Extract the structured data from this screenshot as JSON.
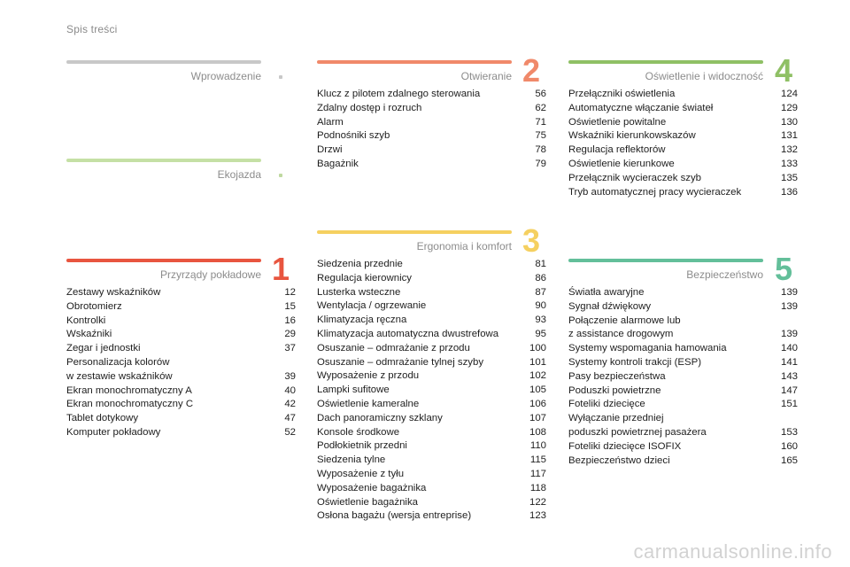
{
  "header": {
    "title": "Spis treści"
  },
  "watermark": "carmanualsonline.info",
  "sections": {
    "wprowadzenie": {
      "title": "Wprowadzenie",
      "color": "#c8c8c8",
      "dot_color": "#c8c8c8"
    },
    "ekojazda": {
      "title": "Ekojazda",
      "color": "#c5e0a5",
      "dot_color": "#bfd9a0"
    },
    "s1": {
      "number": "1",
      "title": "Przyrządy pokładowe",
      "color": "#e8553f",
      "items": [
        {
          "label": "Zestawy wskaźników",
          "page": "12"
        },
        {
          "label": "Obrotomierz",
          "page": "15"
        },
        {
          "label": "Kontrolki",
          "page": "16"
        },
        {
          "label": "Wskaźniki",
          "page": "29"
        },
        {
          "label": "Zegar i jednostki",
          "page": "37"
        },
        {
          "label": "Personalizacja kolorów\n   w zestawie wskaźników",
          "page": "39"
        },
        {
          "label": "Ekran monochromatyczny A",
          "page": "40"
        },
        {
          "label": "Ekran monochromatyczny C",
          "page": "42"
        },
        {
          "label": "Tablet dotykowy",
          "page": "47"
        },
        {
          "label": "Komputer pokładowy",
          "page": "52"
        }
      ]
    },
    "s2": {
      "number": "2",
      "title": "Otwieranie",
      "color": "#f0896a",
      "items": [
        {
          "label": "Klucz z pilotem zdalnego sterowania",
          "page": "56"
        },
        {
          "label": "Zdalny dostęp i rozruch",
          "page": "62"
        },
        {
          "label": "Alarm",
          "page": "71"
        },
        {
          "label": "Podnośniki szyb",
          "page": "75"
        },
        {
          "label": "Drzwi",
          "page": "78"
        },
        {
          "label": "Bagażnik",
          "page": "79"
        }
      ]
    },
    "s3": {
      "number": "3",
      "title": "Ergonomia i komfort",
      "color": "#f5d060",
      "items": [
        {
          "label": "Siedzenia przednie",
          "page": "81"
        },
        {
          "label": "Regulacja kierownicy",
          "page": "86"
        },
        {
          "label": "Lusterka wsteczne",
          "page": "87"
        },
        {
          "label": "Wentylacja / ogrzewanie",
          "page": "90"
        },
        {
          "label": "Klimatyzacja ręczna",
          "page": "93"
        },
        {
          "label": "Klimatyzacja automatyczna dwustrefowa",
          "page": "95"
        },
        {
          "label": "Osuszanie – odmrażanie z przodu",
          "page": "100"
        },
        {
          "label": "Osuszanie – odmrażanie tylnej szyby",
          "page": "101"
        },
        {
          "label": "Wyposażenie z przodu",
          "page": "102"
        },
        {
          "label": "Lampki sufitowe",
          "page": "105"
        },
        {
          "label": "Oświetlenie kameralne",
          "page": "106"
        },
        {
          "label": "Dach panoramiczny szklany",
          "page": "107"
        },
        {
          "label": "Konsole środkowe",
          "page": "108"
        },
        {
          "label": "Podłokietnik przedni",
          "page": "110"
        },
        {
          "label": "Siedzenia tylne",
          "page": "115"
        },
        {
          "label": "Wyposażenie z tyłu",
          "page": "117"
        },
        {
          "label": "Wyposażenie bagażnika",
          "page": "118"
        },
        {
          "label": "Oświetlenie bagażnika",
          "page": "122"
        },
        {
          "label": "Osłona bagażu (wersja entreprise)",
          "page": "123"
        }
      ]
    },
    "s4": {
      "number": "4",
      "title": "Oświetlenie i widoczność",
      "color": "#8fc065",
      "items": [
        {
          "label": "Przełączniki oświetlenia",
          "page": "124"
        },
        {
          "label": "Automatyczne włączanie świateł",
          "page": "129"
        },
        {
          "label": "Oświetlenie powitalne",
          "page": "130"
        },
        {
          "label": "Wskaźniki kierunkowskazów",
          "page": "131"
        },
        {
          "label": "Regulacja reflektorów",
          "page": "132"
        },
        {
          "label": "Oświetlenie kierunkowe",
          "page": "133"
        },
        {
          "label": "Przełącznik wycieraczek szyb",
          "page": "135"
        },
        {
          "label": "Tryb automatycznej pracy wycieraczek",
          "page": "136"
        }
      ]
    },
    "s5": {
      "number": "5",
      "title": "Bezpieczeństwo",
      "color": "#63bf9a",
      "items": [
        {
          "label": "Światła awaryjne",
          "page": "139"
        },
        {
          "label": "Sygnał dźwiękowy",
          "page": "139"
        },
        {
          "label": "Połączenie alarmowe lub\n   z assistance drogowym",
          "page": "139"
        },
        {
          "label": "Systemy wspomagania hamowania",
          "page": "140"
        },
        {
          "label": "Systemy kontroli trakcji (ESP)",
          "page": "141"
        },
        {
          "label": "Pasy bezpieczeństwa",
          "page": "143"
        },
        {
          "label": "Poduszki powietrzne",
          "page": "147"
        },
        {
          "label": "Foteliki dziecięce",
          "page": "151"
        },
        {
          "label": "Wyłączanie przedniej\n   poduszki powietrznej pasażera",
          "page": "153"
        },
        {
          "label": "Foteliki dziecięce ISOFIX",
          "page": "160"
        },
        {
          "label": "Bezpieczeństwo dzieci",
          "page": "165"
        }
      ]
    }
  }
}
